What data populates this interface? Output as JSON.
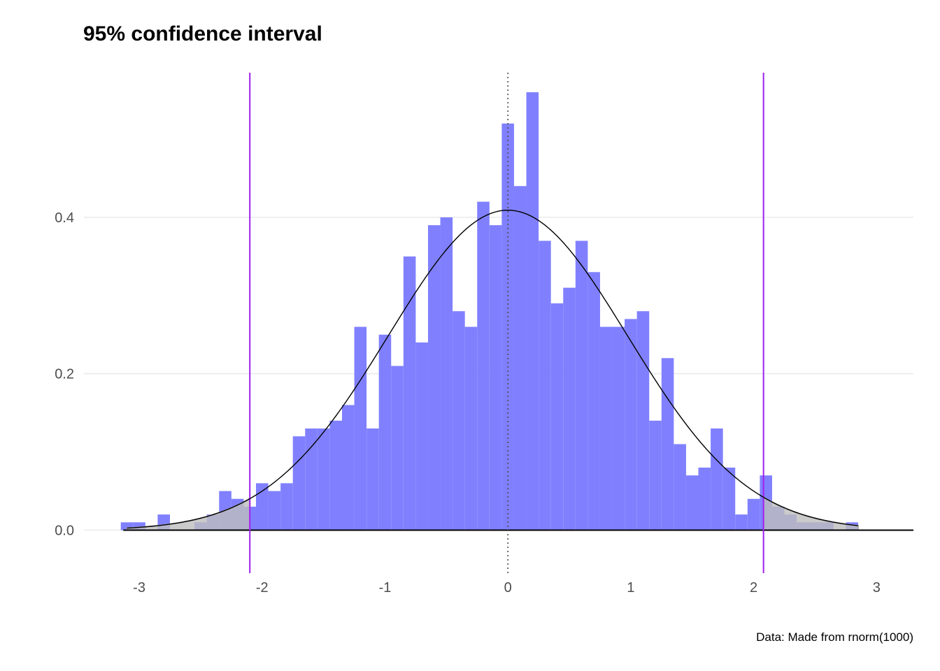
{
  "chart_data": {
    "type": "bar",
    "title": "95% confidence interval",
    "caption": "Data: Made from rnorm(1000)",
    "xlabel": "",
    "ylabel": "",
    "xlim": [
      -3.45,
      3.3
    ],
    "ylim": [
      -0.055,
      0.585
    ],
    "x_ticks": [
      -3,
      -2,
      -1,
      0,
      1,
      2,
      3
    ],
    "y_ticks": [
      0.0,
      0.2,
      0.4
    ],
    "y_tick_labels": [
      "0.0",
      "0.2",
      "0.4"
    ],
    "grid": "horizontal major lines",
    "bin_width": 0.1,
    "histogram": {
      "color": "#8080ff",
      "bin_centers": [
        -3.1,
        -3.0,
        -2.9,
        -2.8,
        -2.7,
        -2.6,
        -2.5,
        -2.4,
        -2.3,
        -2.2,
        -2.1,
        -2.0,
        -1.9,
        -1.8,
        -1.7,
        -1.6,
        -1.5,
        -1.4,
        -1.3,
        -1.2,
        -1.1,
        -1.0,
        -0.9,
        -0.8,
        -0.7,
        -0.6,
        -0.5,
        -0.4,
        -0.3,
        -0.2,
        -0.1,
        0.0,
        0.1,
        0.2,
        0.3,
        0.4,
        0.5,
        0.6,
        0.7,
        0.8,
        0.9,
        1.0,
        1.1,
        1.2,
        1.3,
        1.4,
        1.5,
        1.6,
        1.7,
        1.8,
        1.9,
        2.0,
        2.1,
        2.2,
        2.3,
        2.4,
        2.5,
        2.6,
        2.7,
        2.8
      ],
      "density": [
        0.01,
        0.01,
        0.0,
        0.02,
        0.0,
        0.0,
        0.01,
        0.02,
        0.05,
        0.04,
        0.03,
        0.06,
        0.05,
        0.06,
        0.12,
        0.13,
        0.13,
        0.14,
        0.16,
        0.26,
        0.13,
        0.25,
        0.21,
        0.35,
        0.24,
        0.39,
        0.4,
        0.28,
        0.26,
        0.42,
        0.39,
        0.52,
        0.44,
        0.56,
        0.37,
        0.29,
        0.31,
        0.37,
        0.33,
        0.26,
        0.26,
        0.27,
        0.28,
        0.14,
        0.22,
        0.11,
        0.07,
        0.08,
        0.13,
        0.08,
        0.02,
        0.04,
        0.07,
        0.03,
        0.02,
        0.01,
        0.01,
        0.01,
        0.0,
        0.01
      ]
    },
    "density_curve": {
      "color": "#000000",
      "mean": 0.0,
      "sd": 0.975,
      "x_range": [
        -3.1,
        2.85
      ]
    },
    "tails": {
      "fill": "#bebebe",
      "left_range": [
        -3.1,
        -2.1
      ],
      "right_range": [
        2.08,
        2.85
      ]
    },
    "vlines": [
      {
        "x": -2.1,
        "color": "#a020f0",
        "style": "solid"
      },
      {
        "x": 2.08,
        "color": "#a020f0",
        "style": "solid"
      },
      {
        "x": 0.0,
        "color": "#4d4d4d",
        "style": "dotted"
      }
    ],
    "hline": {
      "y": 0.0,
      "color": "#000000"
    }
  }
}
